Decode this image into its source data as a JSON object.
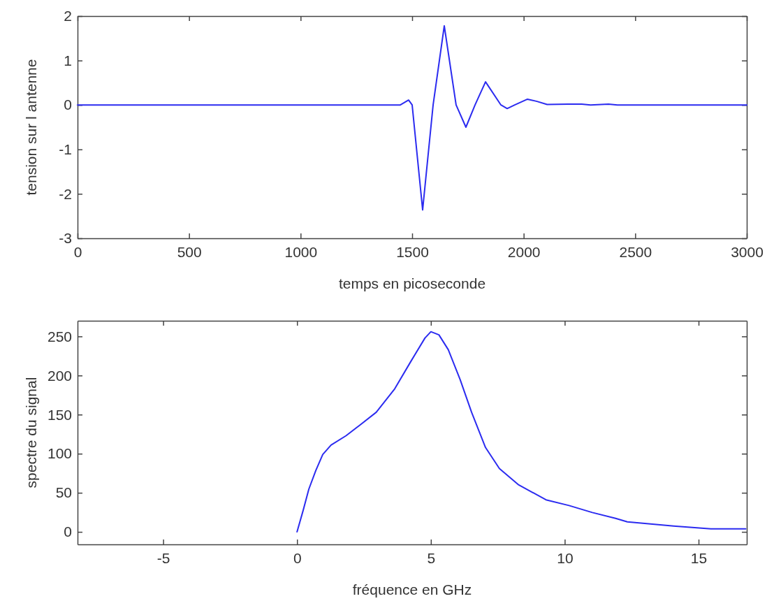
{
  "chart_data": [
    {
      "type": "line",
      "xlabel": "temps en picoseconde",
      "ylabel": "tension sur l antenne",
      "xlim": [
        0,
        3000
      ],
      "ylim": [
        -3,
        2
      ],
      "xticks": [
        0,
        500,
        1000,
        1500,
        2000,
        2500,
        3000
      ],
      "yticks": [
        -3,
        -2,
        -1,
        0,
        1,
        2
      ],
      "grid": false,
      "series": [
        {
          "color": "#2b2bf0",
          "x": [
            0,
            1000,
            1447,
            1484,
            1500,
            1547,
            1594,
            1644,
            1697,
            1741,
            1782,
            1829,
            1898,
            1926,
            1960,
            2017,
            2060,
            2105,
            2200,
            2260,
            2300,
            2380,
            2420,
            2500,
            3000
          ],
          "values": [
            0,
            0,
            0,
            0.11,
            0,
            -2.36,
            0,
            1.78,
            0,
            -0.5,
            0,
            0.52,
            0,
            -0.08,
            0,
            0.13,
            0.08,
            0.01,
            0.02,
            0.02,
            0,
            0.02,
            0,
            0,
            0
          ]
        }
      ]
    },
    {
      "type": "line",
      "xlabel": "fréquence en GHz",
      "ylabel": "spectre du signal",
      "xlim": [
        -8.2,
        16.8
      ],
      "ylim": [
        -16,
        270
      ],
      "xticks": [
        -5,
        0,
        5,
        10,
        15
      ],
      "yticks": [
        0,
        50,
        100,
        150,
        200,
        250
      ],
      "grid": false,
      "series": [
        {
          "color": "#2b2bf0",
          "x": [
            0,
            0.23,
            0.44,
            0.7,
            0.96,
            1.27,
            1.83,
            2.35,
            2.96,
            3.65,
            4.26,
            4.78,
            5.0,
            5.3,
            5.65,
            6.09,
            6.52,
            7.04,
            7.56,
            8.26,
            9.3,
            10.16,
            11.03,
            11.9,
            12.34,
            14.07,
            15.46,
            16.76
          ],
          "values": [
            0,
            27.7,
            54.6,
            78.4,
            99,
            111,
            123,
            136.6,
            153,
            183,
            218.5,
            248,
            256,
            252,
            233,
            195,
            153,
            108,
            81,
            60.6,
            41,
            33.7,
            24.8,
            17.3,
            12.8,
            7.4,
            3.8,
            3.8
          ]
        }
      ]
    }
  ]
}
